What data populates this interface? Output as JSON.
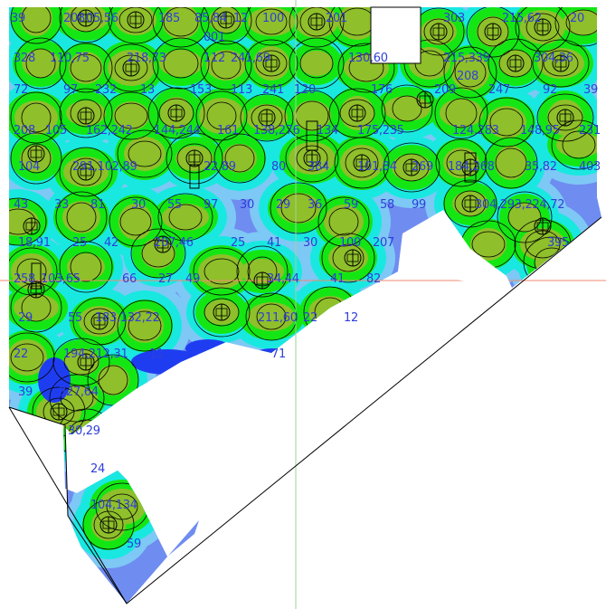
{
  "colors": {
    "band_low": "#1f3df0",
    "band_midlow": "#6f8cf0",
    "band_mid": "#7ec8f5",
    "band_cyan": "#19e8e0",
    "band_green": "#14e614",
    "band_olive": "#8fbf2a",
    "contour": "#000000",
    "label": "#2f3fd8",
    "gridline": "#f08a70",
    "gridline_v": "#9ad49a",
    "outline": "#000000"
  },
  "labels": [
    "39",
    "208",
    "05,56",
    "185",
    "85,84",
    "12",
    "100",
    "201",
    "303",
    "215,62",
    "20",
    "328",
    "110,75",
    "218,73",
    "112",
    "241,69",
    "130,60",
    "215,339",
    "304,36",
    "72",
    "97",
    "232",
    "13",
    "153",
    "113",
    "241",
    "120",
    "176",
    "209",
    "247",
    "92",
    "39",
    "208",
    "105",
    "162,242",
    "144,244",
    "161",
    "138,276",
    "134",
    "175,235",
    "124,283",
    "148,95",
    "231",
    "104",
    "291,102,89",
    "22,89",
    "80",
    "384",
    "101,84",
    "269",
    "184,268",
    "35,82",
    "403",
    "43",
    "33",
    "81",
    "30",
    "55",
    "97",
    "30",
    "29",
    "36",
    "59",
    "58",
    "99",
    "304,293,224,72",
    "18,91",
    "25",
    "42",
    "207,46",
    "25",
    "41",
    "30",
    "100",
    "207",
    "395",
    "258",
    "103,65",
    "66",
    "27",
    "49",
    "34,44",
    "41",
    "82",
    "29",
    "55",
    "183,132,22",
    "211,60",
    "22",
    "12",
    "22",
    "194,212,31",
    "11",
    "71",
    "39",
    "327,64",
    "30,29",
    "24",
    "104,134",
    "59",
    "208",
    "001"
  ],
  "icons": [
    "light-fixture-icon"
  ]
}
